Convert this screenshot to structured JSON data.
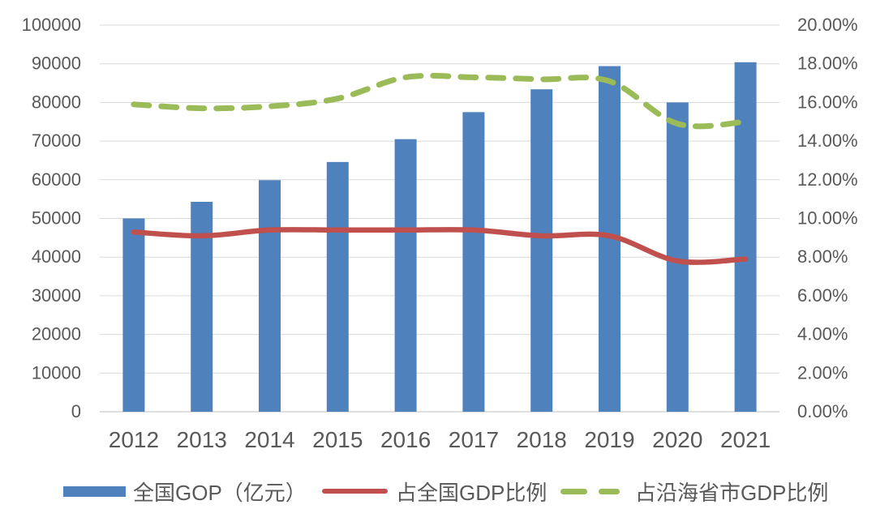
{
  "chart_data": {
    "type": "combo-bar-line",
    "title": "",
    "categories": [
      "2012",
      "2013",
      "2014",
      "2015",
      "2016",
      "2017",
      "2018",
      "2019",
      "2020",
      "2021"
    ],
    "series": [
      {
        "name": "全国GOP（亿元）",
        "type": "bar",
        "axis": "left",
        "color": "#4F81BD",
        "values": [
          50000,
          54300,
          59900,
          64600,
          70500,
          77500,
          83400,
          89400,
          80000,
          90400
        ]
      },
      {
        "name": "占全国GDP比例",
        "type": "line",
        "line_style": "solid",
        "axis": "right",
        "color": "#C0504D",
        "values": [
          9.3,
          9.1,
          9.4,
          9.4,
          9.4,
          9.4,
          9.1,
          9.1,
          7.8,
          7.9
        ]
      },
      {
        "name": "占沿海省市GDP比例",
        "type": "line",
        "line_style": "dashed",
        "axis": "right",
        "color": "#9BBB59",
        "values": [
          15.9,
          15.7,
          15.8,
          16.2,
          17.3,
          17.3,
          17.2,
          17.1,
          14.9,
          15.0
        ]
      }
    ],
    "left_axis": {
      "min": 0,
      "max": 100000,
      "step": 10000,
      "tick_labels": [
        "100000",
        "90000",
        "80000",
        "70000",
        "60000",
        "50000",
        "40000",
        "30000",
        "20000",
        "10000",
        "0"
      ]
    },
    "right_axis": {
      "min": 0,
      "max": 20,
      "step": 2,
      "tick_labels": [
        "20.00%",
        "18.00%",
        "16.00%",
        "14.00%",
        "12.00%",
        "10.00%",
        "8.00%",
        "6.00%",
        "4.00%",
        "2.00%",
        "0.00%"
      ]
    },
    "grid": true,
    "grid_color": "#D9D9D9",
    "axis_line_color": "#BFBFBF",
    "tick_label_color": "#595959",
    "legend_position": "bottom"
  }
}
